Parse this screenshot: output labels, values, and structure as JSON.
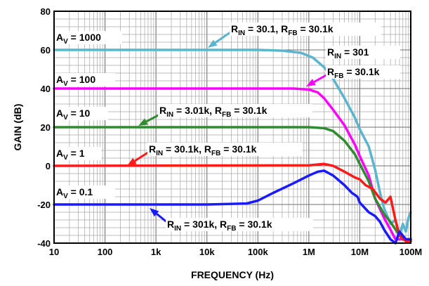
{
  "chart_data": {
    "type": "line",
    "title": "",
    "xlabel": "FREQUENCY (Hz)",
    "ylabel": "GAIN (dB)",
    "xscale": "log",
    "xlim": [
      10,
      100000000
    ],
    "ylim": [
      -40,
      80
    ],
    "grid": true,
    "xticks": [
      {
        "value": 10,
        "label": "10"
      },
      {
        "value": 100,
        "label": "100"
      },
      {
        "value": 1000,
        "label": "1k"
      },
      {
        "value": 10000,
        "label": "10k"
      },
      {
        "value": 100000,
        "label": "100k"
      },
      {
        "value": 1000000,
        "label": "1M"
      },
      {
        "value": 10000000,
        "label": "10M"
      },
      {
        "value": 100000000,
        "label": "100M"
      }
    ],
    "yticks": [
      {
        "value": 80,
        "label": "80"
      },
      {
        "value": 60,
        "label": "60"
      },
      {
        "value": 40,
        "label": "40"
      },
      {
        "value": 20,
        "label": "20"
      },
      {
        "value": 0,
        "label": "0"
      },
      {
        "value": -20,
        "label": "-20"
      },
      {
        "value": -40,
        "label": "-40"
      }
    ],
    "series": [
      {
        "color": "#5bb5cf",
        "points": [
          [
            10,
            60
          ],
          [
            100000,
            60
          ],
          [
            300000,
            59.6
          ],
          [
            700000,
            58.5
          ],
          [
            1200000,
            56
          ],
          [
            2000000,
            51
          ],
          [
            3000000,
            45
          ],
          [
            5000000,
            35
          ],
          [
            8000000,
            25
          ],
          [
            10000000,
            19
          ],
          [
            15000000,
            10
          ],
          [
            20000000,
            -2
          ],
          [
            25000000,
            -14
          ],
          [
            30000000,
            -22
          ],
          [
            40000000,
            -30
          ],
          [
            50000000,
            -28
          ],
          [
            60000000,
            -36
          ],
          [
            70000000,
            -30
          ],
          [
            80000000,
            -34
          ],
          [
            90000000,
            -27
          ],
          [
            100000000,
            -24
          ]
        ]
      },
      {
        "color": "#ff00ff",
        "points": [
          [
            10,
            40
          ],
          [
            500000,
            40
          ],
          [
            1000000,
            39.5
          ],
          [
            1500000,
            38
          ],
          [
            2000000,
            35
          ],
          [
            3000000,
            29
          ],
          [
            5000000,
            21
          ],
          [
            8000000,
            11
          ],
          [
            10000000,
            5
          ],
          [
            15000000,
            -5
          ],
          [
            20000000,
            -17
          ],
          [
            30000000,
            -27
          ],
          [
            40000000,
            -33
          ],
          [
            50000000,
            -38
          ],
          [
            70000000,
            -38
          ],
          [
            100000000,
            -38
          ]
        ]
      },
      {
        "color": "#2e8b2e",
        "points": [
          [
            10,
            20
          ],
          [
            1000000,
            20
          ],
          [
            2000000,
            19.5
          ],
          [
            3000000,
            18
          ],
          [
            5000000,
            13
          ],
          [
            8000000,
            6
          ],
          [
            10000000,
            1
          ],
          [
            15000000,
            -8
          ],
          [
            20000000,
            -17
          ],
          [
            30000000,
            -25
          ],
          [
            40000000,
            -29
          ],
          [
            60000000,
            -36
          ],
          [
            80000000,
            -39
          ],
          [
            100000000,
            -39
          ]
        ]
      },
      {
        "color": "#ff1a1a",
        "points": [
          [
            10,
            0
          ],
          [
            1000000,
            0.3
          ],
          [
            2000000,
            1
          ],
          [
            3000000,
            0
          ],
          [
            5000000,
            -3
          ],
          [
            8000000,
            -6
          ],
          [
            10000000,
            -7
          ],
          [
            13000000,
            -10
          ],
          [
            18000000,
            -12
          ],
          [
            25000000,
            -17
          ],
          [
            32000000,
            -19
          ],
          [
            40000000,
            -16
          ],
          [
            50000000,
            -28
          ],
          [
            60000000,
            -36
          ],
          [
            80000000,
            -39
          ],
          [
            100000000,
            -39
          ]
        ]
      },
      {
        "color": "#1a1aff",
        "points": [
          [
            10,
            -20
          ],
          [
            10000,
            -20
          ],
          [
            60000,
            -19.5
          ],
          [
            100000,
            -18
          ],
          [
            200000,
            -14
          ],
          [
            500000,
            -9
          ],
          [
            1000000,
            -5
          ],
          [
            1500000,
            -3
          ],
          [
            2000000,
            -2.5
          ],
          [
            3000000,
            -5
          ],
          [
            5000000,
            -10
          ],
          [
            7000000,
            -14
          ],
          [
            9000000,
            -16
          ],
          [
            10000000,
            -19
          ],
          [
            15000000,
            -24
          ],
          [
            20000000,
            -26
          ],
          [
            25000000,
            -29
          ],
          [
            30000000,
            -33
          ],
          [
            40000000,
            -38
          ],
          [
            50000000,
            -40
          ],
          [
            60000000,
            -34
          ],
          [
            80000000,
            -38
          ],
          [
            100000000,
            -38
          ]
        ]
      }
    ],
    "annotations": [
      {
        "main": "A",
        "sub": "V",
        "rest": " = 1000"
      },
      {
        "main": "A",
        "sub": "V",
        "rest": " = 100"
      },
      {
        "main": "A",
        "sub": "V",
        "rest": " = 10"
      },
      {
        "main": "A",
        "sub": "V",
        "rest": " = 1"
      },
      {
        "main": "A",
        "sub": "V",
        "rest": " = 0.1"
      },
      {
        "parts": [
          [
            "R",
            "IN",
            " = 30.1, "
          ],
          [
            "R",
            "FB",
            " = 30.1k"
          ]
        ]
      },
      {
        "parts": [
          [
            "R",
            "IN",
            " = 301"
          ]
        ]
      },
      {
        "parts": [
          [
            "R",
            "FB",
            " = 30.1k"
          ]
        ]
      },
      {
        "parts": [
          [
            "R",
            "IN",
            " = 3.01k, "
          ],
          [
            "R",
            "FB",
            " = 30.1k"
          ]
        ]
      },
      {
        "parts": [
          [
            "R",
            "IN",
            " = 30.1k, "
          ],
          [
            "R",
            "FB",
            " = 30.1k"
          ]
        ]
      },
      {
        "parts": [
          [
            "R",
            "IN",
            " = 301k, "
          ],
          [
            "R",
            "FB",
            " = 30.1k"
          ]
        ]
      }
    ]
  }
}
